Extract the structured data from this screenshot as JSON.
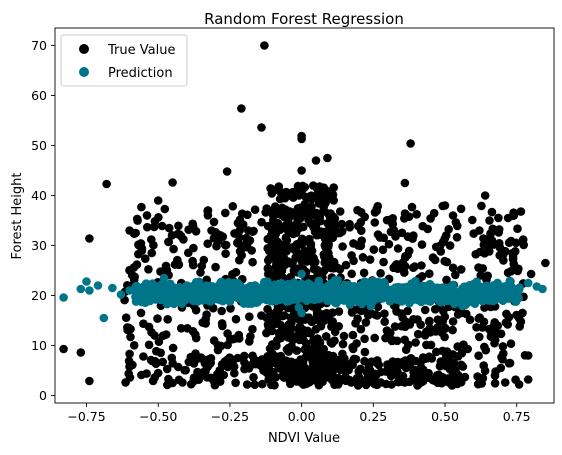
{
  "chart_data": {
    "type": "scatter",
    "title": "Random Forest Regression",
    "xlabel": "NDVI Value",
    "ylabel": "Forest Height",
    "xlim": [
      -0.86,
      0.88
    ],
    "ylim": [
      -1.5,
      73.5
    ],
    "xticks": [
      -0.75,
      -0.5,
      -0.25,
      0.0,
      0.25,
      0.5,
      0.75
    ],
    "xtick_labels": [
      "−0.75",
      "−0.50",
      "−0.25",
      "0.00",
      "0.25",
      "0.50",
      "0.75"
    ],
    "yticks": [
      0,
      10,
      20,
      30,
      40,
      50,
      60,
      70
    ],
    "ytick_labels": [
      "0",
      "10",
      "20",
      "30",
      "40",
      "50",
      "60",
      "70"
    ],
    "grid": false,
    "legend_position": "top-left",
    "series": [
      {
        "name": "True Value",
        "color": "#000000",
        "points": [
          [
            -0.83,
            9.3
          ],
          [
            -0.77,
            8.6
          ],
          [
            -0.74,
            2.9
          ],
          [
            -0.74,
            31.4
          ],
          [
            -0.68,
            42.3
          ],
          [
            -0.13,
            70.0
          ],
          [
            -0.21,
            57.4
          ],
          [
            -0.14,
            53.6
          ],
          [
            0.0,
            51.9
          ],
          [
            0.0,
            51.3
          ],
          [
            0.38,
            50.4
          ],
          [
            -0.45,
            42.6
          ],
          [
            0.05,
            47.0
          ],
          [
            0.09,
            47.5
          ],
          [
            0.0,
            45.0
          ],
          [
            -0.26,
            44.8
          ],
          [
            0.85,
            26.5
          ],
          [
            0.8,
            24.3
          ],
          [
            0.79,
            3.2
          ],
          [
            0.71,
            2.6
          ],
          [
            0.62,
            2.4
          ],
          [
            0.79,
            8.0
          ],
          [
            0.74,
            36.0
          ],
          [
            0.64,
            40.0
          ],
          [
            0.5,
            38.0
          ],
          [
            0.36,
            42.5
          ],
          [
            -0.5,
            4.5
          ],
          [
            -0.45,
            2.5
          ],
          [
            -0.3,
            2.8
          ],
          [
            0.2,
            2.7
          ],
          [
            0.4,
            3.0
          ],
          [
            -0.5,
            39.0
          ],
          [
            -0.6,
            33.0
          ],
          [
            0.62,
            33.0
          ],
          [
            0.72,
            35.5
          ]
        ],
        "bands": [
          {
            "x_min": -0.62,
            "x_max": 0.78,
            "y_min": 2.0,
            "y_max": 38.0,
            "count": 780
          },
          {
            "x_min": -0.12,
            "x_max": 0.12,
            "y_min": 2.0,
            "y_max": 42.0,
            "count": 420
          },
          {
            "x_min": -0.35,
            "x_max": 0.55,
            "y_min": 2.0,
            "y_max": 8.0,
            "count": 180
          }
        ]
      },
      {
        "name": "Prediction",
        "color": "#00758a",
        "points": [
          [
            -0.83,
            19.6
          ],
          [
            -0.77,
            21.3
          ],
          [
            -0.75,
            22.8
          ],
          [
            -0.74,
            21.0
          ],
          [
            -0.71,
            22.0
          ],
          [
            -0.69,
            15.5
          ],
          [
            -0.66,
            21.5
          ],
          [
            -0.63,
            20.2
          ],
          [
            -0.6,
            21.0
          ],
          [
            -0.55,
            21.2
          ],
          [
            -0.52,
            22.4
          ],
          [
            -0.48,
            23.5
          ],
          [
            0.72,
            21.2
          ],
          [
            0.76,
            21.6
          ],
          [
            0.79,
            22.5
          ],
          [
            0.82,
            21.8
          ],
          [
            0.84,
            21.3
          ],
          [
            0.0,
            24.3
          ],
          [
            0.0,
            16.5
          ],
          [
            -0.01,
            17.6
          ]
        ],
        "bands": [
          {
            "x_min": -0.58,
            "x_max": 0.76,
            "y_min": 17.5,
            "y_max": 23.5,
            "count": 1100
          }
        ]
      }
    ]
  }
}
